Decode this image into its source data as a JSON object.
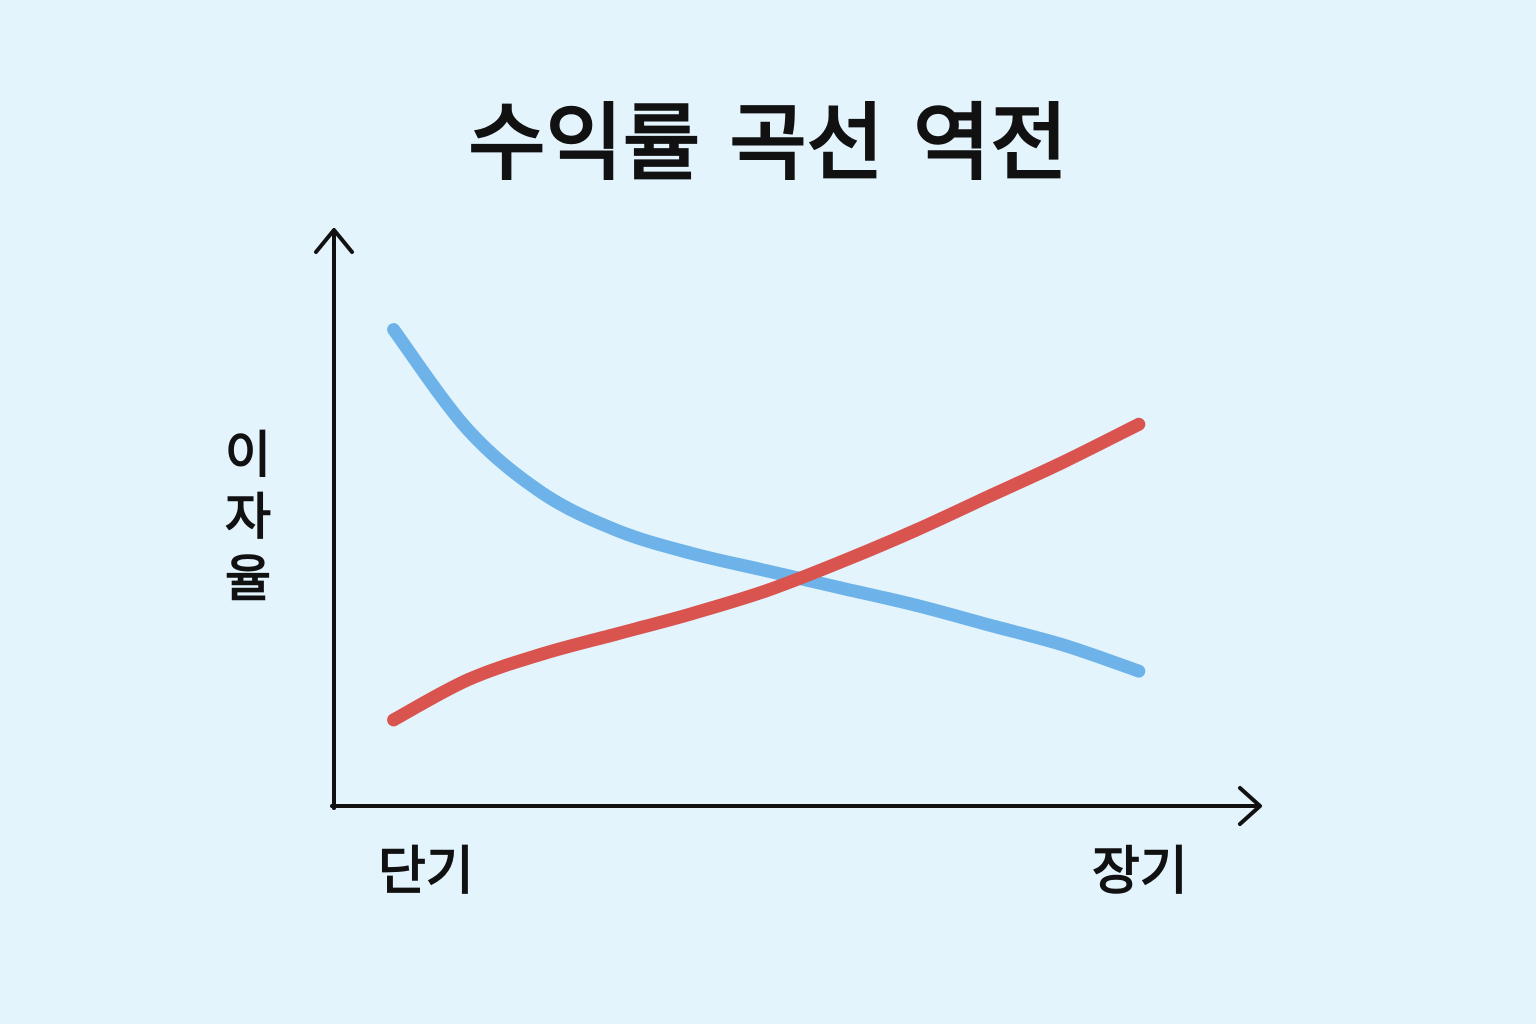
{
  "chart_data": {
    "type": "line",
    "title": "수익률 곡선 역전",
    "ylabel": "이자율",
    "xlabel": "",
    "categories": [
      "단기",
      "장기"
    ],
    "x": [
      0,
      0.1,
      0.2,
      0.3,
      0.4,
      0.5,
      0.6,
      0.7,
      0.8,
      0.9,
      1.0
    ],
    "xlim": [
      -0.08,
      1.16
    ],
    "ylim": [
      0,
      1
    ],
    "grid": false,
    "legend": "none",
    "series": [
      {
        "color": "#6db2e8",
        "values": [
          0.83,
          0.655,
          0.545,
          0.48,
          0.44,
          0.41,
          0.38,
          0.35,
          0.315,
          0.28,
          0.235
        ]
      },
      {
        "color": "#d9534f",
        "values": [
          0.15,
          0.22,
          0.265,
          0.3,
          0.335,
          0.375,
          0.425,
          0.48,
          0.54,
          0.6,
          0.665
        ]
      }
    ]
  }
}
